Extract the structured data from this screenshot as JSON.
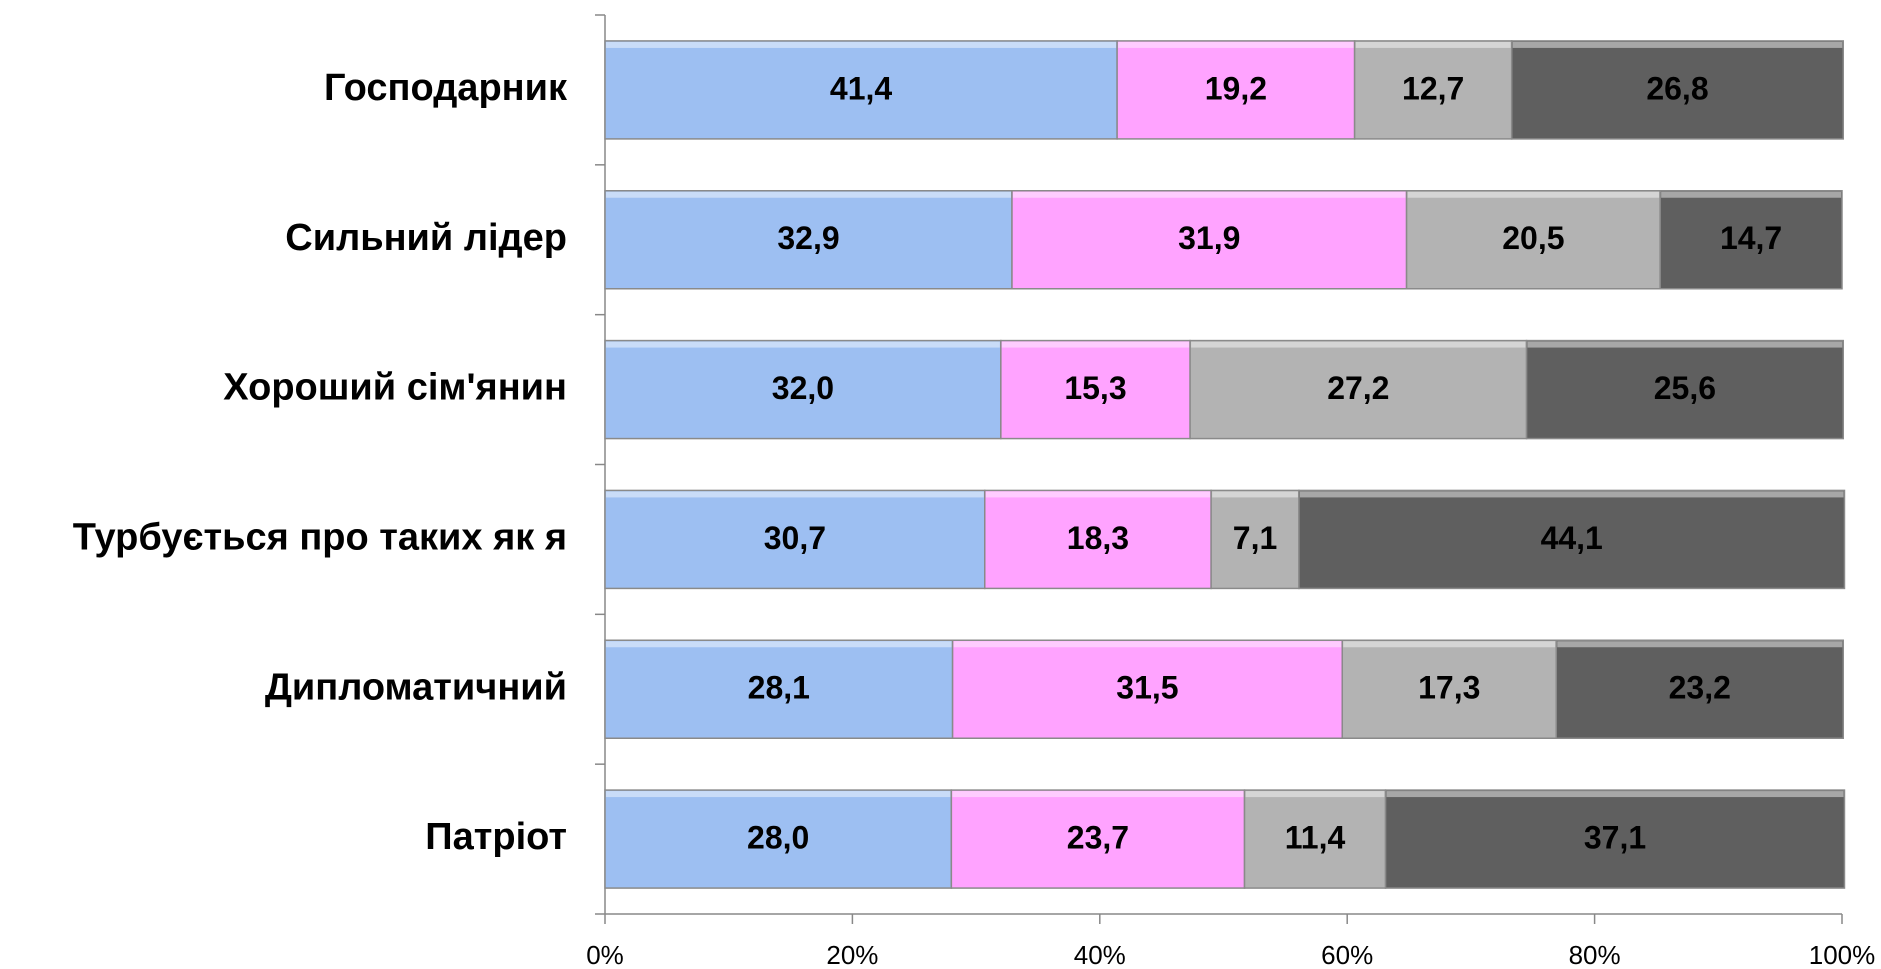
{
  "chart_data": {
    "type": "stacked-bar-horizontal",
    "categories": [
      "Господарник",
      "Сильний лідер",
      "Хороший сім'янин",
      "Турбується про таких як я",
      "Дипломатичний",
      "Патріот"
    ],
    "series": [
      {
        "color": "#9dbff2",
        "values": [
          41.4,
          32.9,
          32.0,
          30.7,
          28.1,
          28.0
        ],
        "value_labels": [
          "41,4",
          "32,9",
          "32,0",
          "30,7",
          "28,1",
          "28,0"
        ]
      },
      {
        "color": "#ffa3ff",
        "values": [
          19.2,
          31.9,
          15.3,
          18.3,
          31.5,
          23.7
        ],
        "value_labels": [
          "19,2",
          "31,9",
          "15,3",
          "18,3",
          "31,5",
          "23,7"
        ]
      },
      {
        "color": "#b3b3b3",
        "values": [
          12.7,
          20.5,
          27.2,
          7.1,
          17.3,
          11.4
        ],
        "value_labels": [
          "12,7",
          "20,5",
          "27,2",
          "7,1",
          "17,3",
          "11,4"
        ]
      },
      {
        "color": "#5f5f5f",
        "values": [
          26.8,
          14.7,
          25.6,
          44.1,
          23.2,
          37.1
        ],
        "value_labels": [
          "26,8",
          "14,7",
          "25,6",
          "44,1",
          "23,2",
          "37,1"
        ]
      }
    ],
    "xlim": [
      0,
      100
    ],
    "xticks": [
      {
        "value": 0,
        "label": "0%"
      },
      {
        "value": 20,
        "label": "20%"
      },
      {
        "value": 40,
        "label": "40%"
      },
      {
        "value": 60,
        "label": "60%"
      },
      {
        "value": 80,
        "label": "80%"
      },
      {
        "value": 100,
        "label": "100%"
      }
    ]
  }
}
